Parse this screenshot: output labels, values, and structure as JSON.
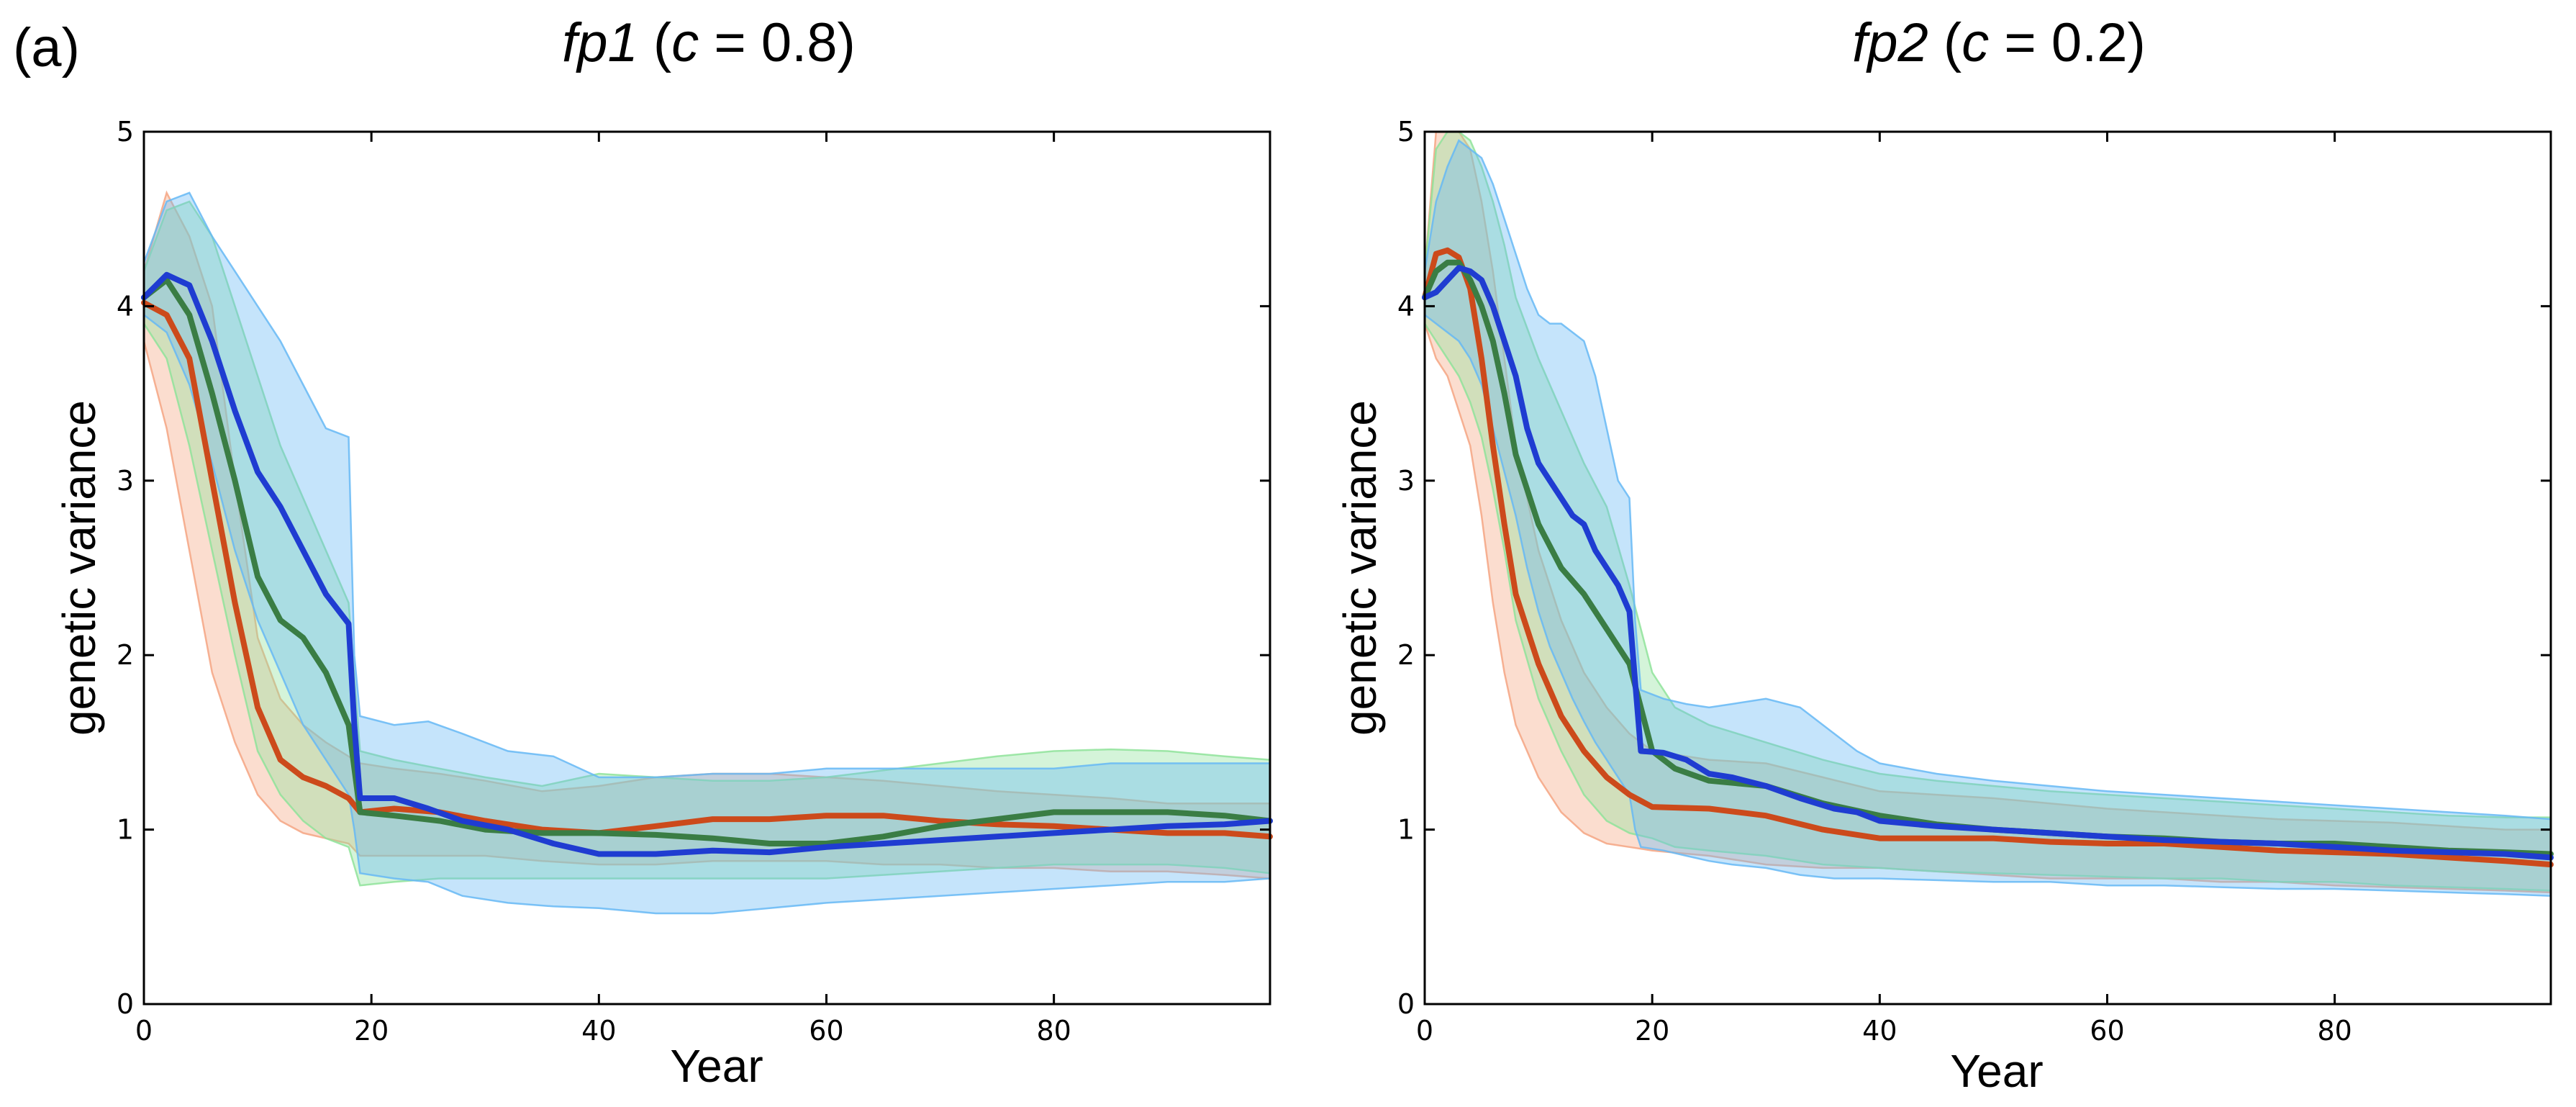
{
  "panel_label": "(a)",
  "colors": {
    "orange": "#cc4a1b",
    "green": "#3a7d44",
    "blue": "#1f3cd1",
    "orange_band": "#f4a582",
    "green_band": "#8fe39a",
    "blue_band": "#66b8f5"
  },
  "chart_data": [
    {
      "type": "line",
      "title_italic_a": "fp1",
      "title_open": " (",
      "title_italic_b": "c",
      "title_rest": " = 0.8)",
      "xlabel": "Year",
      "ylabel": "genetic variance",
      "xlim": [
        0,
        99
      ],
      "ylim": [
        0,
        5
      ],
      "xticks": [
        0,
        20,
        40,
        60,
        80
      ],
      "yticks": [
        0,
        1,
        2,
        3,
        4,
        5
      ],
      "series": [
        {
          "name": "orange",
          "color": "orange",
          "band_color": "orange_band",
          "x": [
            0,
            2,
            4,
            6,
            8,
            10,
            12,
            14,
            16,
            18,
            19,
            22,
            26,
            30,
            35,
            40,
            45,
            50,
            55,
            60,
            65,
            70,
            75,
            80,
            85,
            90,
            95,
            99
          ],
          "y": [
            4.02,
            3.95,
            3.7,
            3.0,
            2.3,
            1.7,
            1.4,
            1.3,
            1.25,
            1.18,
            1.1,
            1.12,
            1.1,
            1.05,
            1.0,
            0.98,
            1.02,
            1.06,
            1.06,
            1.08,
            1.08,
            1.05,
            1.03,
            1.02,
            1.0,
            0.98,
            0.98,
            0.96
          ],
          "lower": [
            3.8,
            3.3,
            2.6,
            1.9,
            1.5,
            1.2,
            1.05,
            0.98,
            0.95,
            0.92,
            0.85,
            0.85,
            0.85,
            0.85,
            0.82,
            0.8,
            0.8,
            0.82,
            0.82,
            0.82,
            0.8,
            0.8,
            0.78,
            0.78,
            0.76,
            0.76,
            0.74,
            0.72
          ],
          "upper": [
            4.2,
            4.65,
            4.4,
            4.0,
            3.0,
            2.1,
            1.75,
            1.6,
            1.5,
            1.42,
            1.38,
            1.35,
            1.32,
            1.28,
            1.22,
            1.25,
            1.3,
            1.32,
            1.32,
            1.3,
            1.28,
            1.25,
            1.22,
            1.2,
            1.18,
            1.15,
            1.15,
            1.15
          ]
        },
        {
          "name": "green",
          "color": "green",
          "band_color": "green_band",
          "x": [
            0,
            2,
            4,
            6,
            8,
            10,
            12,
            14,
            16,
            18,
            19,
            22,
            26,
            30,
            35,
            40,
            45,
            50,
            55,
            60,
            65,
            70,
            75,
            80,
            85,
            90,
            95,
            99
          ],
          "y": [
            4.05,
            4.15,
            3.95,
            3.5,
            3.0,
            2.45,
            2.2,
            2.1,
            1.9,
            1.6,
            1.1,
            1.08,
            1.05,
            1.0,
            0.98,
            0.98,
            0.97,
            0.95,
            0.92,
            0.92,
            0.96,
            1.02,
            1.06,
            1.1,
            1.1,
            1.1,
            1.08,
            1.05
          ],
          "lower": [
            3.9,
            3.7,
            3.2,
            2.6,
            2.0,
            1.45,
            1.2,
            1.05,
            0.95,
            0.9,
            0.68,
            0.7,
            0.72,
            0.72,
            0.72,
            0.72,
            0.72,
            0.72,
            0.72,
            0.72,
            0.74,
            0.76,
            0.78,
            0.8,
            0.8,
            0.8,
            0.78,
            0.75
          ],
          "upper": [
            4.2,
            4.55,
            4.6,
            4.4,
            4.0,
            3.6,
            3.2,
            2.9,
            2.6,
            2.3,
            1.45,
            1.4,
            1.35,
            1.3,
            1.25,
            1.32,
            1.3,
            1.28,
            1.28,
            1.3,
            1.34,
            1.38,
            1.42,
            1.45,
            1.46,
            1.45,
            1.42,
            1.4
          ]
        },
        {
          "name": "blue",
          "color": "blue",
          "band_color": "blue_band",
          "x": [
            0,
            2,
            4,
            6,
            8,
            10,
            12,
            14,
            16,
            18,
            18.5,
            19,
            22,
            25,
            28,
            32,
            36,
            40,
            45,
            50,
            55,
            60,
            65,
            70,
            75,
            80,
            85,
            90,
            95,
            99
          ],
          "y": [
            4.05,
            4.18,
            4.12,
            3.8,
            3.4,
            3.05,
            2.85,
            2.6,
            2.35,
            2.18,
            1.6,
            1.18,
            1.18,
            1.12,
            1.05,
            1.0,
            0.92,
            0.86,
            0.86,
            0.88,
            0.87,
            0.9,
            0.92,
            0.94,
            0.96,
            0.98,
            1.0,
            1.02,
            1.03,
            1.05
          ],
          "lower": [
            3.95,
            3.85,
            3.55,
            3.1,
            2.6,
            2.2,
            1.9,
            1.6,
            1.4,
            1.2,
            1.0,
            0.75,
            0.72,
            0.7,
            0.62,
            0.58,
            0.56,
            0.55,
            0.52,
            0.52,
            0.55,
            0.58,
            0.6,
            0.62,
            0.64,
            0.66,
            0.68,
            0.7,
            0.7,
            0.72
          ],
          "upper": [
            4.25,
            4.6,
            4.65,
            4.4,
            4.2,
            4.0,
            3.8,
            3.55,
            3.3,
            3.25,
            2.0,
            1.65,
            1.6,
            1.62,
            1.55,
            1.45,
            1.42,
            1.3,
            1.3,
            1.32,
            1.32,
            1.35,
            1.35,
            1.35,
            1.35,
            1.35,
            1.38,
            1.38,
            1.38,
            1.38
          ]
        }
      ]
    },
    {
      "type": "line",
      "title_italic_a": "fp2",
      "title_open": " (",
      "title_italic_b": "c",
      "title_rest": " = 0.2)",
      "xlabel": "Year",
      "ylabel": "genetic variance",
      "xlim": [
        0,
        99
      ],
      "ylim": [
        0,
        5
      ],
      "xticks": [
        0,
        20,
        40,
        60,
        80
      ],
      "yticks": [
        0,
        1,
        2,
        3,
        4,
        5
      ],
      "series": [
        {
          "name": "orange",
          "color": "orange",
          "band_color": "orange_band",
          "x": [
            0,
            1,
            2,
            3,
            4,
            5,
            6,
            7,
            8,
            10,
            12,
            14,
            16,
            18,
            20,
            25,
            30,
            35,
            40,
            45,
            50,
            55,
            60,
            65,
            70,
            75,
            80,
            85,
            90,
            95,
            99
          ],
          "y": [
            4.05,
            4.3,
            4.32,
            4.28,
            4.1,
            3.7,
            3.2,
            2.75,
            2.35,
            1.95,
            1.65,
            1.45,
            1.3,
            1.2,
            1.13,
            1.12,
            1.08,
            1.0,
            0.95,
            0.95,
            0.95,
            0.93,
            0.92,
            0.92,
            0.9,
            0.88,
            0.87,
            0.86,
            0.84,
            0.82,
            0.8
          ],
          "lower": [
            3.9,
            3.7,
            3.6,
            3.4,
            3.2,
            2.8,
            2.3,
            1.9,
            1.6,
            1.3,
            1.1,
            0.98,
            0.92,
            0.9,
            0.88,
            0.85,
            0.8,
            0.78,
            0.78,
            0.76,
            0.74,
            0.72,
            0.72,
            0.72,
            0.7,
            0.7,
            0.68,
            0.67,
            0.66,
            0.65,
            0.64
          ],
          "upper": [
            4.2,
            5.0,
            5.0,
            5.0,
            4.9,
            4.6,
            4.2,
            3.7,
            3.2,
            2.6,
            2.2,
            1.9,
            1.7,
            1.55,
            1.45,
            1.4,
            1.38,
            1.3,
            1.22,
            1.2,
            1.18,
            1.15,
            1.12,
            1.1,
            1.08,
            1.06,
            1.05,
            1.04,
            1.02,
            1.0,
            1.0
          ]
        },
        {
          "name": "green",
          "color": "green",
          "band_color": "green_band",
          "x": [
            0,
            1,
            2,
            3,
            4,
            5,
            6,
            7,
            8,
            10,
            12,
            14,
            16,
            18,
            20,
            22,
            25,
            30,
            35,
            40,
            45,
            50,
            55,
            60,
            65,
            70,
            75,
            80,
            85,
            90,
            95,
            99
          ],
          "y": [
            4.05,
            4.2,
            4.25,
            4.25,
            4.15,
            4.0,
            3.8,
            3.5,
            3.15,
            2.75,
            2.5,
            2.35,
            2.15,
            1.95,
            1.45,
            1.35,
            1.28,
            1.25,
            1.15,
            1.08,
            1.03,
            1.0,
            0.98,
            0.96,
            0.95,
            0.93,
            0.92,
            0.92,
            0.9,
            0.88,
            0.87,
            0.86
          ],
          "lower": [
            3.9,
            3.8,
            3.7,
            3.6,
            3.45,
            3.25,
            2.95,
            2.6,
            2.2,
            1.75,
            1.45,
            1.2,
            1.05,
            0.98,
            0.95,
            0.9,
            0.88,
            0.85,
            0.8,
            0.78,
            0.76,
            0.75,
            0.74,
            0.73,
            0.72,
            0.72,
            0.7,
            0.7,
            0.68,
            0.67,
            0.66,
            0.65
          ],
          "upper": [
            4.2,
            4.9,
            5.0,
            5.0,
            4.95,
            4.8,
            4.6,
            4.35,
            4.05,
            3.7,
            3.4,
            3.1,
            2.85,
            2.4,
            1.9,
            1.7,
            1.6,
            1.5,
            1.4,
            1.32,
            1.28,
            1.25,
            1.22,
            1.2,
            1.18,
            1.16,
            1.14,
            1.12,
            1.1,
            1.08,
            1.07,
            1.07
          ]
        },
        {
          "name": "blue",
          "color": "blue",
          "band_color": "blue_band",
          "x": [
            0,
            1,
            2,
            3,
            4,
            5,
            6,
            7,
            8,
            9,
            10,
            11,
            12,
            13,
            14,
            15,
            16,
            17,
            18,
            18.5,
            19,
            21,
            23,
            25,
            27,
            30,
            33,
            36,
            38,
            40,
            45,
            50,
            55,
            60,
            65,
            70,
            75,
            80,
            85,
            90,
            95,
            99
          ],
          "y": [
            4.05,
            4.08,
            4.15,
            4.22,
            4.2,
            4.15,
            4.0,
            3.8,
            3.6,
            3.3,
            3.1,
            3.0,
            2.9,
            2.8,
            2.75,
            2.6,
            2.5,
            2.4,
            2.25,
            1.85,
            1.45,
            1.44,
            1.4,
            1.32,
            1.3,
            1.25,
            1.18,
            1.12,
            1.1,
            1.05,
            1.02,
            1.0,
            0.98,
            0.96,
            0.94,
            0.93,
            0.92,
            0.9,
            0.88,
            0.87,
            0.86,
            0.84
          ],
          "lower": [
            3.95,
            3.9,
            3.85,
            3.8,
            3.7,
            3.55,
            3.3,
            3.05,
            2.8,
            2.5,
            2.25,
            2.05,
            1.9,
            1.75,
            1.62,
            1.5,
            1.4,
            1.3,
            1.2,
            1.0,
            0.9,
            0.88,
            0.85,
            0.82,
            0.8,
            0.78,
            0.74,
            0.72,
            0.72,
            0.72,
            0.71,
            0.7,
            0.7,
            0.68,
            0.68,
            0.67,
            0.66,
            0.66,
            0.65,
            0.64,
            0.63,
            0.62
          ],
          "upper": [
            4.2,
            4.6,
            4.8,
            4.95,
            4.9,
            4.85,
            4.7,
            4.5,
            4.3,
            4.1,
            3.95,
            3.9,
            3.9,
            3.85,
            3.8,
            3.6,
            3.3,
            3.0,
            2.9,
            2.2,
            1.8,
            1.75,
            1.72,
            1.7,
            1.72,
            1.75,
            1.7,
            1.55,
            1.45,
            1.38,
            1.32,
            1.28,
            1.25,
            1.22,
            1.2,
            1.18,
            1.16,
            1.14,
            1.12,
            1.1,
            1.08,
            1.06
          ]
        }
      ]
    }
  ]
}
